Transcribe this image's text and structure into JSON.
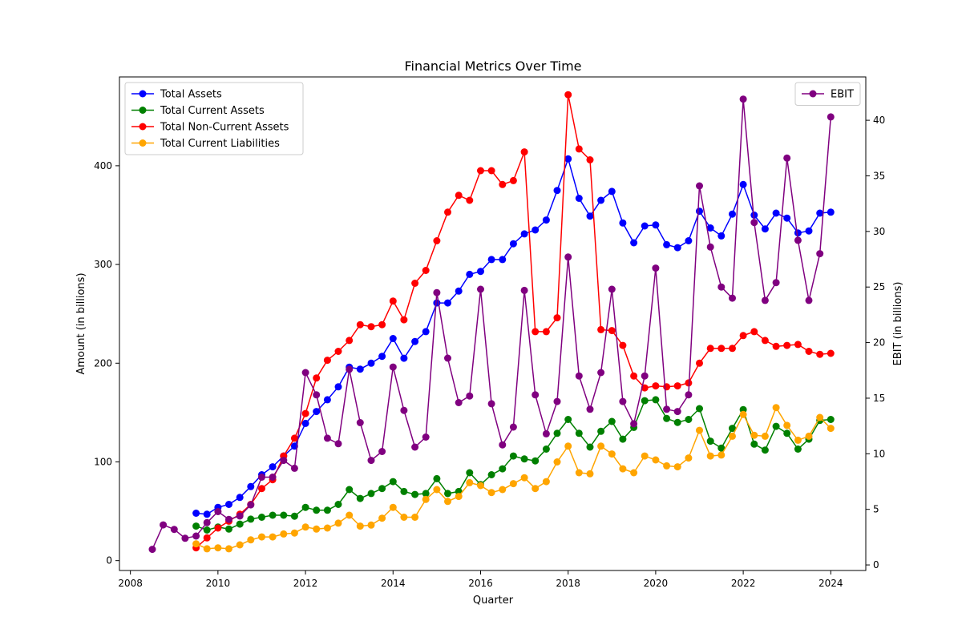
{
  "chart_data": {
    "type": "line",
    "title": "Financial Metrics Over Time",
    "xlabel": "Quarter",
    "ylabel": "Amount (in billions)",
    "y2label": "EBIT (in billions)",
    "xlim": [
      2007.75,
      2024.8
    ],
    "ylim": [
      -10,
      490
    ],
    "y2lim": [
      -0.5,
      43.9
    ],
    "xticks": [
      "2008",
      "2010",
      "2012",
      "2014",
      "2016",
      "2018",
      "2020",
      "2022",
      "2024"
    ],
    "yticks": [
      "0",
      "100",
      "200",
      "300",
      "400"
    ],
    "y2ticks": [
      "0",
      "5",
      "10",
      "15",
      "20",
      "25",
      "30",
      "35",
      "40"
    ],
    "legend_left_position": "upper-left",
    "legend_right_position": "upper-right",
    "series": [
      {
        "name": "Total Assets",
        "axis": "left",
        "color": "#0000ff",
        "x": [
          2009.5,
          2009.75,
          2010.0,
          2010.25,
          2010.5,
          2010.75,
          2011.0,
          2011.25,
          2011.5,
          2011.75,
          2012.0,
          2012.25,
          2012.5,
          2012.75,
          2013.0,
          2013.25,
          2013.5,
          2013.75,
          2014.0,
          2014.25,
          2014.5,
          2014.75,
          2015.0,
          2015.25,
          2015.5,
          2015.75,
          2016.0,
          2016.25,
          2016.5,
          2016.75,
          2017.0,
          2017.25,
          2017.5,
          2017.75,
          2018.0,
          2018.25,
          2018.5,
          2018.75,
          2019.0,
          2019.25,
          2019.5,
          2019.75,
          2020.0,
          2020.25,
          2020.5,
          2020.75,
          2021.0,
          2021.25,
          2021.5,
          2021.75,
          2022.0,
          2022.25,
          2022.5,
          2022.75,
          2023.0,
          2023.25,
          2023.5,
          2023.75,
          2024.0
        ],
        "values": [
          48,
          47,
          54,
          57,
          64,
          75,
          87,
          95,
          106,
          116,
          139,
          151,
          163,
          176,
          196,
          194,
          200,
          207,
          225,
          205,
          222,
          232,
          261,
          261,
          273,
          290,
          293,
          305,
          305,
          321,
          331,
          335,
          345,
          375,
          407,
          367,
          349,
          365,
          374,
          342,
          322,
          339,
          340,
          320,
          317,
          324,
          354,
          337,
          329,
          351,
          381,
          350,
          336,
          352,
          347,
          332,
          334,
          352,
          353
        ]
      },
      {
        "name": "Total Current Assets",
        "axis": "left",
        "color": "#008000",
        "x": [
          2009.5,
          2009.75,
          2010.0,
          2010.25,
          2010.5,
          2010.75,
          2011.0,
          2011.25,
          2011.5,
          2011.75,
          2012.0,
          2012.25,
          2012.5,
          2012.75,
          2013.0,
          2013.25,
          2013.5,
          2013.75,
          2014.0,
          2014.25,
          2014.5,
          2014.75,
          2015.0,
          2015.25,
          2015.5,
          2015.75,
          2016.0,
          2016.25,
          2016.5,
          2016.75,
          2017.0,
          2017.25,
          2017.5,
          2017.75,
          2018.0,
          2018.25,
          2018.5,
          2018.75,
          2019.0,
          2019.25,
          2019.5,
          2019.75,
          2020.0,
          2020.25,
          2020.5,
          2020.75,
          2021.0,
          2021.25,
          2021.5,
          2021.75,
          2022.0,
          2022.25,
          2022.5,
          2022.75,
          2023.0,
          2023.25,
          2023.5,
          2023.75,
          2024.0
        ],
        "values": [
          35,
          31,
          34,
          32,
          37,
          42,
          44,
          46,
          46,
          45,
          54,
          51,
          51,
          57,
          72,
          63,
          68,
          73,
          80,
          70,
          67,
          68,
          83,
          68,
          70,
          89,
          77,
          87,
          93,
          106,
          103,
          101,
          113,
          129,
          143,
          129,
          115,
          131,
          141,
          123,
          135,
          162,
          163,
          144,
          140,
          143,
          154,
          121,
          114,
          134,
          153,
          118,
          112,
          136,
          129,
          113,
          123,
          142,
          143
        ]
      },
      {
        "name": "Total Non-Current Assets",
        "axis": "left",
        "color": "#ff0000",
        "x": [
          2009.5,
          2009.75,
          2010.0,
          2010.25,
          2010.5,
          2010.75,
          2011.0,
          2011.25,
          2011.5,
          2011.75,
          2012.0,
          2012.25,
          2012.5,
          2012.75,
          2013.0,
          2013.25,
          2013.5,
          2013.75,
          2014.0,
          2014.25,
          2014.5,
          2014.75,
          2015.0,
          2015.25,
          2015.5,
          2015.75,
          2016.0,
          2016.25,
          2016.5,
          2016.75,
          2017.0,
          2017.25,
          2017.5,
          2017.75,
          2018.0,
          2018.25,
          2018.5,
          2018.75,
          2019.0,
          2019.25,
          2019.5,
          2019.75,
          2020.0,
          2020.25,
          2020.5,
          2020.75,
          2021.0,
          2021.25,
          2021.5,
          2021.75,
          2022.0,
          2022.25,
          2022.5,
          2022.75,
          2023.0,
          2023.25,
          2023.5,
          2023.75,
          2024.0
        ],
        "values": [
          13,
          23,
          33,
          40,
          47,
          57,
          73,
          82,
          106,
          124,
          149,
          185,
          203,
          212,
          223,
          239,
          237,
          239,
          263,
          244,
          281,
          294,
          324,
          353,
          370,
          365,
          395,
          395,
          381,
          385,
          414,
          232,
          232,
          246,
          472,
          417,
          406,
          234,
          233,
          218,
          187,
          175,
          177,
          176,
          177,
          180,
          200,
          215,
          215,
          215,
          228,
          232,
          223,
          217,
          218,
          219,
          212,
          209,
          210
        ]
      },
      {
        "name": "Total Current Liabilities",
        "axis": "left",
        "color": "#ffa500",
        "x": [
          2009.5,
          2009.75,
          2010.0,
          2010.25,
          2010.5,
          2010.75,
          2011.0,
          2011.25,
          2011.5,
          2011.75,
          2012.0,
          2012.25,
          2012.5,
          2012.75,
          2013.0,
          2013.25,
          2013.5,
          2013.75,
          2014.0,
          2014.25,
          2014.5,
          2014.75,
          2015.0,
          2015.25,
          2015.5,
          2015.75,
          2016.0,
          2016.25,
          2016.5,
          2016.75,
          2017.0,
          2017.25,
          2017.5,
          2017.75,
          2018.0,
          2018.25,
          2018.5,
          2018.75,
          2019.0,
          2019.25,
          2019.5,
          2019.75,
          2020.0,
          2020.25,
          2020.5,
          2020.75,
          2021.0,
          2021.25,
          2021.5,
          2021.75,
          2022.0,
          2022.25,
          2022.5,
          2022.75,
          2023.0,
          2023.25,
          2023.5,
          2023.75,
          2024.0
        ],
        "values": [
          17,
          12,
          13,
          12,
          16,
          21,
          24,
          24,
          27,
          28,
          34,
          32,
          33,
          38,
          46,
          35,
          36,
          43,
          54,
          44,
          44,
          62,
          72,
          60,
          65,
          79,
          76,
          69,
          72,
          78,
          84,
          73,
          80,
          100,
          116,
          89,
          88,
          116,
          108,
          93,
          89,
          106,
          102,
          96,
          95,
          104,
          132,
          106,
          107,
          126,
          148,
          127,
          126,
          155,
          137,
          122,
          126,
          145,
          134
        ]
      },
      {
        "name": "EBIT",
        "axis": "right",
        "color": "#800080",
        "x": [
          2008.5,
          2008.75,
          2009.0,
          2009.25,
          2009.5,
          2009.75,
          2010.0,
          2010.25,
          2010.5,
          2010.75,
          2011.0,
          2011.25,
          2011.5,
          2011.75,
          2012.0,
          2012.25,
          2012.5,
          2012.75,
          2013.0,
          2013.25,
          2013.5,
          2013.75,
          2014.0,
          2014.25,
          2014.5,
          2014.75,
          2015.0,
          2015.25,
          2015.5,
          2015.75,
          2016.0,
          2016.25,
          2016.5,
          2016.75,
          2017.0,
          2017.25,
          2017.5,
          2017.75,
          2018.0,
          2018.25,
          2018.5,
          2018.75,
          2019.0,
          2019.25,
          2019.5,
          2019.75,
          2020.0,
          2020.25,
          2020.5,
          2020.75,
          2021.0,
          2021.25,
          2021.5,
          2021.75,
          2022.0,
          2022.25,
          2022.5,
          2022.75,
          2023.0,
          2023.25,
          2023.5,
          2023.75,
          2024.0
        ],
        "values": [
          1.4,
          3.6,
          3.2,
          2.4,
          2.6,
          3.8,
          4.8,
          4.1,
          4.4,
          5.4,
          7.9,
          7.9,
          9.4,
          8.7,
          17.3,
          15.3,
          11.4,
          10.9,
          17.6,
          12.8,
          9.4,
          10.2,
          17.8,
          13.9,
          10.6,
          11.5,
          24.5,
          18.6,
          14.6,
          15.2,
          24.8,
          14.5,
          10.8,
          12.4,
          24.7,
          15.3,
          11.8,
          14.7,
          27.7,
          17.0,
          14.0,
          17.3,
          24.8,
          14.7,
          12.7,
          17.0,
          26.7,
          14.0,
          13.8,
          15.3,
          34.1,
          28.6,
          25.0,
          24.0,
          41.9,
          30.8,
          23.8,
          25.4,
          36.6,
          29.2,
          23.8,
          28.0,
          40.3
        ]
      }
    ]
  }
}
